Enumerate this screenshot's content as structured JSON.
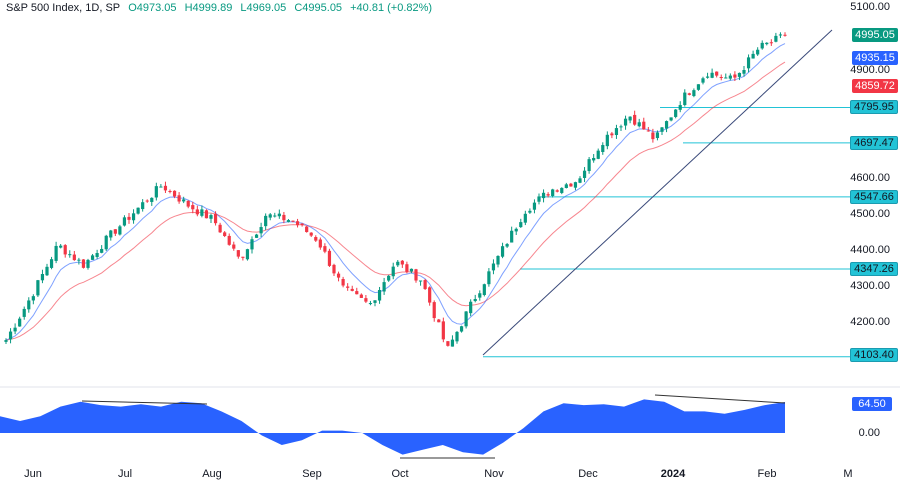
{
  "legend": {
    "symbol": "S&P 500 Index, 1D, SP",
    "open": "O4973.05",
    "high": "H4999.89",
    "low": "L4969.05",
    "close": "C4995.05",
    "change": "+40.81 (+0.82%)"
  },
  "price_axis": [
    "5100.00",
    "4900.00",
    "4600.00",
    "4500.00",
    "4400.00",
    "4300.00",
    "4200.00"
  ],
  "price_tags": {
    "last": "4995.05",
    "ma_fast": "4935.15",
    "ma_slow": "4859.72"
  },
  "levels": [
    "4795.95",
    "4697.47",
    "4547.66",
    "4347.26",
    "4103.40"
  ],
  "oscillator": {
    "value": "64.50",
    "zero": "0.00",
    "values": [
      35,
      25,
      35,
      55,
      65,
      58,
      55,
      60,
      55,
      65,
      62,
      45,
      25,
      -5,
      -25,
      -15,
      5,
      5,
      0,
      -25,
      -45,
      -35,
      -25,
      -40,
      -45,
      -20,
      10,
      45,
      62,
      58,
      60,
      55,
      70,
      65,
      45,
      45,
      40,
      48,
      58,
      64.5
    ]
  },
  "time_axis": [
    "Jun",
    "Jul",
    "Aug",
    "Sep",
    "Oct",
    "Nov",
    "Dec",
    "2024",
    "Feb",
    "M"
  ],
  "price_path": [
    4150,
    4275,
    4414,
    4358,
    4440,
    4510,
    4580,
    4525,
    4483,
    4372,
    4497,
    4483,
    4428,
    4290,
    4247,
    4367,
    4317,
    4122,
    4261,
    4386,
    4511,
    4567,
    4594,
    4706,
    4775,
    4706,
    4817,
    4894,
    4872,
    4961,
    4995.05
  ],
  "colors": {
    "up": "#089981",
    "down": "#f23645",
    "ma_fast": "#2962ff",
    "ma_slow": "#f23645",
    "level": "#22c3d6",
    "osc": "#2962ff",
    "trend": "#3a4a7a"
  }
}
